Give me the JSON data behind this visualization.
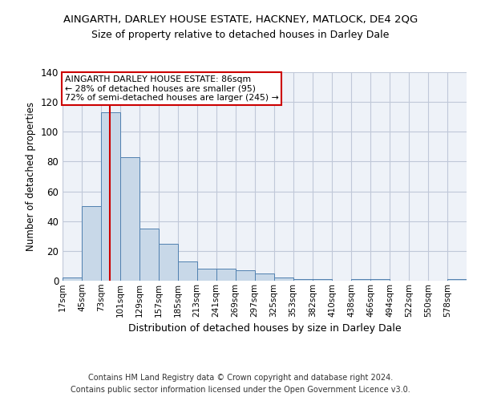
{
  "title": "AINGARTH, DARLEY HOUSE ESTATE, HACKNEY, MATLOCK, DE4 2QG",
  "subtitle": "Size of property relative to detached houses in Darley Dale",
  "xlabel": "Distribution of detached houses by size in Darley Dale",
  "ylabel": "Number of detached properties",
  "bin_labels": [
    "17sqm",
    "45sqm",
    "73sqm",
    "101sqm",
    "129sqm",
    "157sqm",
    "185sqm",
    "213sqm",
    "241sqm",
    "269sqm",
    "297sqm",
    "325sqm",
    "353sqm",
    "382sqm",
    "410sqm",
    "438sqm",
    "466sqm",
    "494sqm",
    "522sqm",
    "550sqm",
    "578sqm"
  ],
  "bin_edges": [
    17,
    45,
    73,
    101,
    129,
    157,
    185,
    213,
    241,
    269,
    297,
    325,
    353,
    382,
    410,
    438,
    466,
    494,
    522,
    550,
    578,
    606
  ],
  "bar_heights": [
    2,
    50,
    113,
    83,
    35,
    25,
    13,
    8,
    8,
    7,
    5,
    2,
    1,
    1,
    0,
    1,
    1,
    0,
    0,
    0,
    1
  ],
  "bar_color": "#c8d8e8",
  "bar_edge_color": "#5080b0",
  "property_size": 86,
  "red_line_color": "#cc0000",
  "annotation_text_line1": "AINGARTH DARLEY HOUSE ESTATE: 86sqm",
  "annotation_text_line2": "← 28% of detached houses are smaller (95)",
  "annotation_text_line3": "72% of semi-detached houses are larger (245) →",
  "annotation_box_color": "#cc0000",
  "ylim": [
    0,
    140
  ],
  "yticks": [
    0,
    20,
    40,
    60,
    80,
    100,
    120,
    140
  ],
  "grid_color": "#c0c8d8",
  "footer_line1": "Contains HM Land Registry data © Crown copyright and database right 2024.",
  "footer_line2": "Contains public sector information licensed under the Open Government Licence v3.0.",
  "bg_color": "#eef2f8"
}
